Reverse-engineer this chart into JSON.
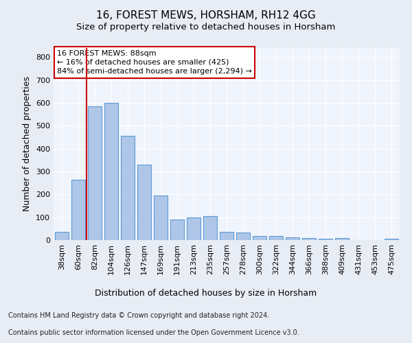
{
  "title": "16, FOREST MEWS, HORSHAM, RH12 4GG",
  "subtitle": "Size of property relative to detached houses in Horsham",
  "xlabel": "Distribution of detached houses by size in Horsham",
  "ylabel": "Number of detached properties",
  "categories": [
    "38sqm",
    "60sqm",
    "82sqm",
    "104sqm",
    "126sqm",
    "147sqm",
    "169sqm",
    "191sqm",
    "213sqm",
    "235sqm",
    "257sqm",
    "278sqm",
    "300sqm",
    "322sqm",
    "344sqm",
    "366sqm",
    "388sqm",
    "409sqm",
    "431sqm",
    "453sqm",
    "475sqm"
  ],
  "values": [
    35,
    265,
    585,
    600,
    455,
    330,
    195,
    90,
    100,
    105,
    35,
    32,
    18,
    17,
    12,
    10,
    6,
    8,
    0,
    0,
    7
  ],
  "bar_color": "#aec6e8",
  "bar_edge_color": "#5b9bd5",
  "vline_color": "#cc0000",
  "vline_x": 2.0,
  "annotation_text": "16 FOREST MEWS: 88sqm\n← 16% of detached houses are smaller (425)\n84% of semi-detached houses are larger (2,294) →",
  "annotation_box_color": "#cc0000",
  "ylim": [
    0,
    840
  ],
  "yticks": [
    0,
    100,
    200,
    300,
    400,
    500,
    600,
    700,
    800
  ],
  "footer_line1": "Contains HM Land Registry data © Crown copyright and database right 2024.",
  "footer_line2": "Contains public sector information licensed under the Open Government Licence v3.0.",
  "bg_color": "#e8edf5",
  "plot_bg_color": "#f0f4fc",
  "title_fontsize": 11,
  "subtitle_fontsize": 9.5,
  "axis_label_fontsize": 9,
  "tick_fontsize": 8,
  "footer_fontsize": 7,
  "annotation_fontsize": 8
}
